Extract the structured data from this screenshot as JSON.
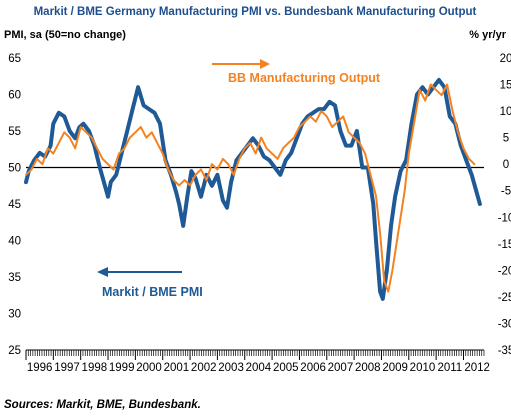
{
  "chart_data": {
    "type": "line",
    "title": "Markit / BME Germany Manufacturing PMI vs. Bundesbank Manufacturing Output",
    "left_axis_title": "PMI, sa (50=no change)",
    "right_axis_title": "% yr/yr",
    "left_ylim": [
      25,
      65
    ],
    "right_ylim": [
      -35,
      20
    ],
    "left_ticks": [
      "25",
      "30",
      "35",
      "40",
      "45",
      "50",
      "55",
      "60",
      "65"
    ],
    "right_ticks": [
      "-35",
      "-30",
      "-25",
      "-20",
      "-15",
      "-10",
      "-5",
      "0",
      "5",
      "10",
      "15",
      "20"
    ],
    "x_categories": [
      "1996",
      "1997",
      "1998",
      "1999",
      "2000",
      "2001",
      "2002",
      "2003",
      "2004",
      "2005",
      "2006",
      "2007",
      "2008",
      "2009",
      "2010",
      "2011",
      "2012"
    ],
    "xlim": [
      1996.0,
      2012.75
    ],
    "reference_line": {
      "value": 50,
      "axis": "left"
    },
    "annotations": {
      "pmi_label": "Markit / BME PMI",
      "output_label": "BB Manufacturing Output"
    },
    "source": "Sources: Markit, BME, Bundesbank.",
    "colors": {
      "pmi": "#1f5a96",
      "output": "#f58220",
      "title": "#1f4e8c"
    },
    "series": [
      {
        "name": "Markit / BME PMI",
        "axis": "left",
        "x": [
          1996.0,
          1996.1,
          1996.3,
          1996.5,
          1996.7,
          1996.9,
          1997.0,
          1997.2,
          1997.4,
          1997.6,
          1997.8,
          1997.95,
          1998.1,
          1998.3,
          1998.5,
          1998.7,
          1998.85,
          1999.0,
          1999.1,
          1999.3,
          1999.5,
          1999.7,
          1999.9,
          2000.1,
          2000.3,
          2000.5,
          2000.7,
          2000.9,
          2001.1,
          2001.3,
          2001.5,
          2001.6,
          2001.75,
          2001.9,
          2002.05,
          2002.2,
          2002.4,
          2002.6,
          2002.8,
          2003.0,
          2003.2,
          2003.35,
          2003.5,
          2003.7,
          2003.9,
          2004.1,
          2004.3,
          2004.5,
          2004.7,
          2004.9,
          2005.1,
          2005.3,
          2005.5,
          2005.7,
          2005.9,
          2006.1,
          2006.3,
          2006.5,
          2006.7,
          2006.9,
          2007.1,
          2007.3,
          2007.5,
          2007.7,
          2007.9,
          2008.1,
          2008.3,
          2008.5,
          2008.7,
          2008.8,
          2008.95,
          2009.05,
          2009.2,
          2009.35,
          2009.5,
          2009.7,
          2009.9,
          2010.1,
          2010.3,
          2010.5,
          2010.7,
          2010.9,
          2011.1,
          2011.3,
          2011.5,
          2011.7,
          2011.9,
          2012.1,
          2012.3,
          2012.45,
          2012.6
        ],
        "y": [
          48,
          49.5,
          51,
          52,
          51.5,
          53,
          56,
          57.5,
          57,
          55,
          54,
          55.5,
          56,
          55,
          53,
          50,
          48,
          46,
          48,
          49,
          52,
          55,
          58,
          61,
          58.5,
          58,
          57.5,
          56,
          51,
          49,
          46.5,
          45,
          42,
          46,
          49.5,
          48.5,
          46,
          49,
          47.5,
          49,
          45.5,
          44.5,
          48,
          51,
          52,
          53,
          54,
          53,
          51.5,
          51,
          50,
          49,
          51,
          52,
          54,
          56,
          57,
          57.5,
          58,
          58,
          59,
          58.5,
          55,
          53,
          53,
          55,
          50,
          50,
          45,
          40,
          33,
          32,
          36,
          42,
          46,
          49.5,
          51,
          56,
          60,
          61,
          60,
          61,
          62,
          61,
          57,
          56,
          53,
          51,
          49,
          47,
          45
        ]
      },
      {
        "name": "BB Manufacturing Output",
        "axis": "right",
        "x": [
          1996.0,
          1996.2,
          1996.4,
          1996.6,
          1996.8,
          1997.0,
          1997.2,
          1997.4,
          1997.6,
          1997.8,
          1998.0,
          1998.2,
          1998.4,
          1998.6,
          1998.8,
          1999.0,
          1999.2,
          1999.4,
          1999.6,
          1999.8,
          2000.0,
          2000.2,
          2000.4,
          2000.6,
          2000.8,
          2001.0,
          2001.2,
          2001.4,
          2001.6,
          2001.8,
          2002.0,
          2002.2,
          2002.4,
          2002.6,
          2002.8,
          2003.0,
          2003.2,
          2003.4,
          2003.6,
          2003.8,
          2004.0,
          2004.2,
          2004.4,
          2004.6,
          2004.8,
          2005.0,
          2005.2,
          2005.4,
          2005.6,
          2005.8,
          2006.0,
          2006.2,
          2006.4,
          2006.6,
          2006.8,
          2007.0,
          2007.2,
          2007.4,
          2007.6,
          2007.8,
          2008.0,
          2008.2,
          2008.4,
          2008.6,
          2008.8,
          2008.95,
          2009.1,
          2009.25,
          2009.4,
          2009.55,
          2009.7,
          2009.85,
          2010.0,
          2010.2,
          2010.4,
          2010.6,
          2010.8,
          2011.0,
          2011.2,
          2011.4,
          2011.6,
          2011.8,
          2012.0,
          2012.2,
          2012.4
        ],
        "y": [
          -2,
          -1,
          1,
          0,
          3,
          2,
          4,
          6,
          5,
          3,
          7,
          6,
          5,
          3,
          1,
          0,
          -1,
          2,
          3,
          5,
          6,
          7,
          5,
          6,
          4,
          2,
          -1,
          -3,
          -4,
          -3,
          -4,
          -2,
          -1,
          -3,
          0,
          -1,
          1,
          0,
          -2,
          1,
          3,
          4,
          2,
          5,
          3,
          2,
          1,
          3,
          4,
          5,
          7,
          8,
          9,
          8,
          10,
          9,
          7,
          8,
          9,
          6,
          5,
          4,
          2,
          -2,
          -6,
          -13,
          -22,
          -24,
          -20,
          -15,
          -10,
          -5,
          2,
          8,
          14,
          12,
          15,
          14,
          13,
          15,
          10,
          6,
          3,
          1,
          0
        ]
      }
    ]
  }
}
